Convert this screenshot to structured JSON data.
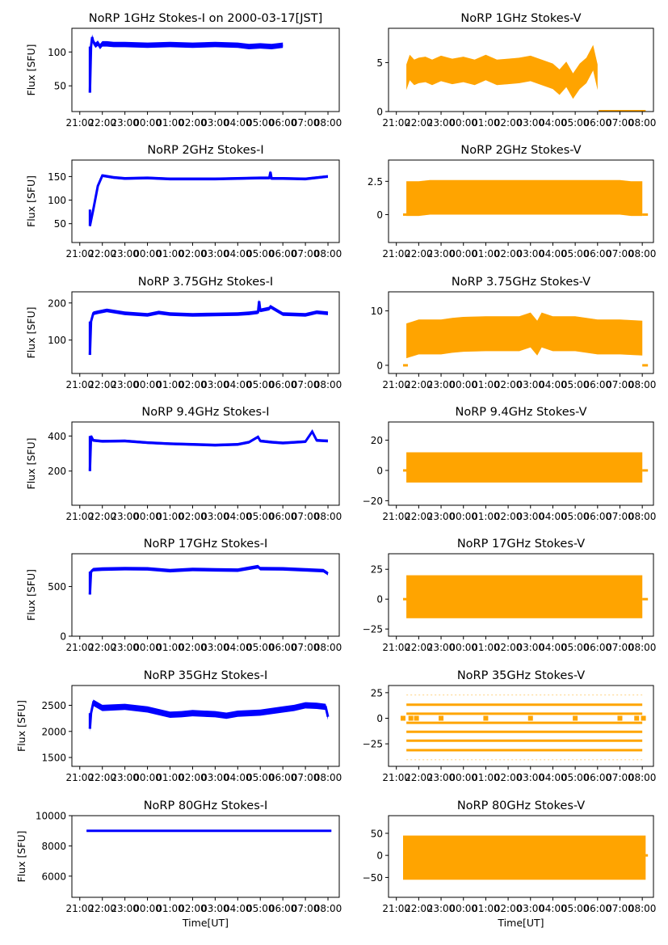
{
  "figure": {
    "series_colors": {
      "stokes_i": "#0000ff",
      "stokes_v": "#ffa500"
    },
    "x_tick_labels": [
      "21:00",
      "22:00",
      "23:00",
      "00:00",
      "01:00",
      "02:00",
      "03:00",
      "04:00",
      "05:00",
      "06:00",
      "07:00",
      "08:00"
    ],
    "x_tick_render_labels": [
      "21:0",
      "22:0",
      "23:0",
      "00:0",
      "01:0",
      "02:0",
      "03:0",
      "04:0",
      "05:0",
      "06:0",
      "07:0",
      "08:00"
    ],
    "xlabel": "Time[UT]",
    "ylabel": "Flux [SFU]"
  },
  "chart_data": [
    {
      "id": "1ghz-i",
      "type": "scatter",
      "title": "NoRP 1GHz Stokes-I on 2000-03-17[JST]",
      "xlabel": "",
      "ylabel": "Flux [SFU]",
      "ylim": [
        12,
        135
      ],
      "yticks": [
        50,
        100
      ],
      "x_hours": [
        21.45,
        21.5,
        21.55,
        21.6,
        21.7,
        21.8,
        21.9,
        22.0,
        22.2,
        22.5,
        23.0,
        0.0,
        1.0,
        2.0,
        3.0,
        4.0,
        4.5,
        5.0,
        5.5,
        6.0
      ],
      "y": [
        40,
        108,
        122,
        115,
        110,
        113,
        108,
        112,
        112,
        111,
        111,
        110,
        111,
        110,
        111,
        110,
        108,
        109,
        108,
        110
      ],
      "band": 4,
      "legend": "none",
      "grid": false
    },
    {
      "id": "1ghz-v",
      "type": "scatter",
      "title": "NoRP 1GHz Stokes-V",
      "xlabel": "",
      "ylabel": "",
      "ylim": [
        0,
        8.5
      ],
      "yticks": [
        0,
        5
      ],
      "x_hours": [
        21.45,
        21.6,
        21.8,
        22.0,
        22.3,
        22.6,
        23.0,
        23.5,
        0.0,
        0.5,
        1.0,
        1.5,
        2.0,
        2.5,
        3.0,
        3.5,
        4.0,
        4.3,
        4.6,
        4.9,
        5.2,
        5.5,
        5.8,
        6.0
      ],
      "y": [
        3.5,
        4.5,
        4.0,
        4.2,
        4.3,
        4.0,
        4.4,
        4.1,
        4.3,
        4.0,
        4.5,
        4.0,
        4.1,
        4.2,
        4.4,
        4.0,
        3.6,
        3.0,
        3.8,
        2.6,
        3.6,
        4.2,
        5.5,
        3.5
      ],
      "band": 1.3,
      "legend": "none",
      "grid": false
    },
    {
      "id": "2ghz-i",
      "type": "scatter",
      "title": "NoRP 2GHz Stokes-I",
      "xlabel": "",
      "ylabel": "Flux [SFU]",
      "ylim": [
        10,
        185
      ],
      "yticks": [
        50,
        100,
        150
      ],
      "x_hours": [
        21.45,
        21.6,
        21.8,
        22.0,
        22.5,
        23.0,
        0.0,
        1.0,
        2.0,
        3.0,
        4.0,
        5.0,
        5.4,
        5.45,
        5.5,
        6.0,
        7.0,
        7.95,
        8.0
      ],
      "y": [
        45,
        80,
        130,
        152,
        148,
        146,
        147,
        145,
        145,
        145,
        146,
        147,
        147,
        160,
        146,
        146,
        145,
        150,
        150
      ],
      "band": 3,
      "legend": "none",
      "grid": false
    },
    {
      "id": "2ghz-v",
      "type": "scatter",
      "title": "NoRP 2GHz Stokes-V",
      "xlabel": "",
      "ylabel": "",
      "ylim": [
        -2.1,
        4.1
      ],
      "yticks": [
        0.0,
        2.5
      ],
      "x_hours": [
        21.45,
        22.0,
        22.5,
        23.0,
        0.0,
        1.0,
        2.0,
        3.0,
        4.0,
        5.0,
        6.0,
        7.0,
        7.5,
        8.0
      ],
      "y": [
        1.2,
        1.2,
        1.3,
        1.3,
        1.3,
        1.3,
        1.3,
        1.3,
        1.3,
        1.3,
        1.3,
        1.3,
        1.2,
        1.2
      ],
      "band": 1.3,
      "legend": "none",
      "grid": false
    },
    {
      "id": "3_75ghz-i",
      "type": "scatter",
      "title": "NoRP 3.75GHz Stokes-I",
      "xlabel": "",
      "ylabel": "Flux [SFU]",
      "ylim": [
        10,
        230
      ],
      "yticks": [
        100,
        200
      ],
      "x_hours": [
        21.45,
        21.5,
        21.6,
        21.8,
        22.2,
        23.0,
        0.0,
        0.5,
        1.0,
        2.0,
        3.0,
        4.0,
        4.5,
        4.9,
        4.95,
        5.0,
        5.4,
        5.45,
        6.0,
        7.0,
        7.5,
        8.0
      ],
      "y": [
        60,
        150,
        172,
        175,
        180,
        172,
        168,
        174,
        170,
        168,
        169,
        170,
        172,
        175,
        205,
        180,
        185,
        190,
        170,
        168,
        175,
        172
      ],
      "band": 5,
      "legend": "none",
      "grid": false
    },
    {
      "id": "3_75ghz-v",
      "type": "scatter",
      "title": "NoRP 3.75GHz Stokes-V",
      "xlabel": "",
      "ylabel": "",
      "ylim": [
        -1.5,
        13.5
      ],
      "yticks": [
        0,
        10
      ],
      "x_hours": [
        21.45,
        22.0,
        23.0,
        23.5,
        0.0,
        1.0,
        2.0,
        2.5,
        3.0,
        3.3,
        3.5,
        4.0,
        5.0,
        5.5,
        6.0,
        7.0,
        8.0
      ],
      "y": [
        4.5,
        5.2,
        5.2,
        5.5,
        5.7,
        5.8,
        5.8,
        5.8,
        6.5,
        5.0,
        6.5,
        5.8,
        5.8,
        5.5,
        5.2,
        5.2,
        5.0
      ],
      "band": 3.2,
      "legend": "none",
      "grid": false
    },
    {
      "id": "9_4ghz-i",
      "type": "scatter",
      "title": "NoRP 9.4GHz Stokes-I",
      "xlabel": "",
      "ylabel": "Flux [SFU]",
      "ylim": [
        5,
        480
      ],
      "yticks": [
        200,
        400
      ],
      "x_hours": [
        21.45,
        21.5,
        21.6,
        22.0,
        23.0,
        0.0,
        1.0,
        2.0,
        3.0,
        4.0,
        4.5,
        4.9,
        5.0,
        5.5,
        6.0,
        7.0,
        7.3,
        7.5,
        8.0
      ],
      "y": [
        200,
        400,
        375,
        370,
        372,
        362,
        356,
        352,
        348,
        352,
        365,
        395,
        372,
        365,
        360,
        368,
        425,
        375,
        372
      ],
      "band": 8,
      "legend": "none",
      "grid": false
    },
    {
      "id": "9_4ghz-v",
      "type": "scatter",
      "title": "NoRP 9.4GHz Stokes-V",
      "xlabel": "",
      "ylabel": "",
      "ylim": [
        -23,
        32
      ],
      "yticks": [
        -20,
        0,
        20
      ],
      "x_hours": [
        21.45,
        22.0,
        23.0,
        0.0,
        1.0,
        2.0,
        3.0,
        4.0,
        5.0,
        6.0,
        7.0,
        8.0
      ],
      "y": [
        2,
        2,
        2,
        2,
        2,
        2,
        2,
        2,
        2,
        2,
        2,
        2
      ],
      "band": 10,
      "legend": "none",
      "grid": false
    },
    {
      "id": "17ghz-i",
      "type": "scatter",
      "title": "NoRP 17GHz Stokes-I",
      "xlabel": "",
      "ylabel": "Flux [SFU]",
      "ylim": [
        0,
        830
      ],
      "yticks": [
        0,
        500
      ],
      "x_hours": [
        21.45,
        21.5,
        21.6,
        22.0,
        23.0,
        0.0,
        1.0,
        2.0,
        3.0,
        4.0,
        4.9,
        5.0,
        6.0,
        7.0,
        7.8,
        8.0
      ],
      "y": [
        420,
        650,
        670,
        675,
        680,
        678,
        660,
        672,
        668,
        665,
        700,
        680,
        678,
        668,
        660,
        630
      ],
      "band": 18,
      "legend": "none",
      "grid": false
    },
    {
      "id": "17ghz-v",
      "type": "scatter",
      "title": "NoRP 17GHz Stokes-V",
      "xlabel": "",
      "ylabel": "",
      "ylim": [
        -31,
        38
      ],
      "yticks": [
        -25,
        0,
        25
      ],
      "x_hours": [
        21.45,
        22.0,
        23.0,
        0.0,
        1.0,
        2.0,
        3.0,
        4.0,
        5.0,
        6.0,
        7.0,
        8.0
      ],
      "y": [
        2,
        2,
        2,
        2,
        2,
        2,
        2,
        2,
        2,
        2,
        2,
        2
      ],
      "band": 18,
      "legend": "none",
      "grid": false
    },
    {
      "id": "35ghz-i",
      "type": "scatter",
      "title": "NoRP 35GHz Stokes-I",
      "xlabel": "",
      "ylabel": "Flux [SFU]",
      "ylim": [
        1330,
        2880
      ],
      "yticks": [
        1500,
        2000,
        2500
      ],
      "x_hours": [
        21.45,
        21.5,
        21.6,
        22.0,
        23.0,
        0.0,
        0.5,
        1.0,
        1.5,
        2.0,
        3.0,
        3.5,
        4.0,
        5.0,
        6.0,
        6.5,
        7.0,
        7.5,
        7.9,
        8.0
      ],
      "y": [
        2050,
        2350,
        2550,
        2450,
        2470,
        2420,
        2370,
        2320,
        2330,
        2350,
        2330,
        2300,
        2340,
        2360,
        2420,
        2450,
        2500,
        2490,
        2470,
        2280
      ],
      "band": 60,
      "legend": "none",
      "grid": false
    },
    {
      "id": "35ghz-v",
      "type": "scatter",
      "title": "NoRP 35GHz Stokes-V",
      "xlabel": "",
      "ylabel": "",
      "ylim": [
        -47,
        32
      ],
      "yticks": [
        -25,
        0,
        25
      ],
      "levels": [
        -40.5,
        -31.2,
        -21.9,
        -13.2,
        -4.4,
        4.4,
        13.2,
        22.8
      ],
      "x_range_hours": [
        21.45,
        8.0
      ],
      "legend": "none",
      "grid": false
    },
    {
      "id": "80ghz-i",
      "type": "scatter",
      "title": "NoRP 80GHz Stokes-I",
      "xlabel": "Time[UT]",
      "ylabel": "Flux [SFU]",
      "ylim": [
        4600,
        10000
      ],
      "yticks": [
        6000,
        8000,
        10000
      ],
      "x_hours": [
        21.3,
        8.15
      ],
      "y": [
        9000,
        9000
      ],
      "band": 60,
      "legend": "none",
      "grid": false
    },
    {
      "id": "80ghz-v",
      "type": "scatter",
      "title": "NoRP 80GHz Stokes-V",
      "xlabel": "Time[UT]",
      "ylabel": "",
      "ylim": [
        -95,
        90
      ],
      "yticks": [
        -50,
        0,
        50
      ],
      "x_hours": [
        21.3,
        22.0,
        23.0,
        0.0,
        1.0,
        2.0,
        3.0,
        4.0,
        5.0,
        6.0,
        7.0,
        8.15
      ],
      "y": [
        -5,
        -5,
        -5,
        -5,
        -5,
        -5,
        -5,
        -5,
        -5,
        -5,
        -5,
        -5
      ],
      "band": 50,
      "legend": "none",
      "grid": false
    }
  ]
}
